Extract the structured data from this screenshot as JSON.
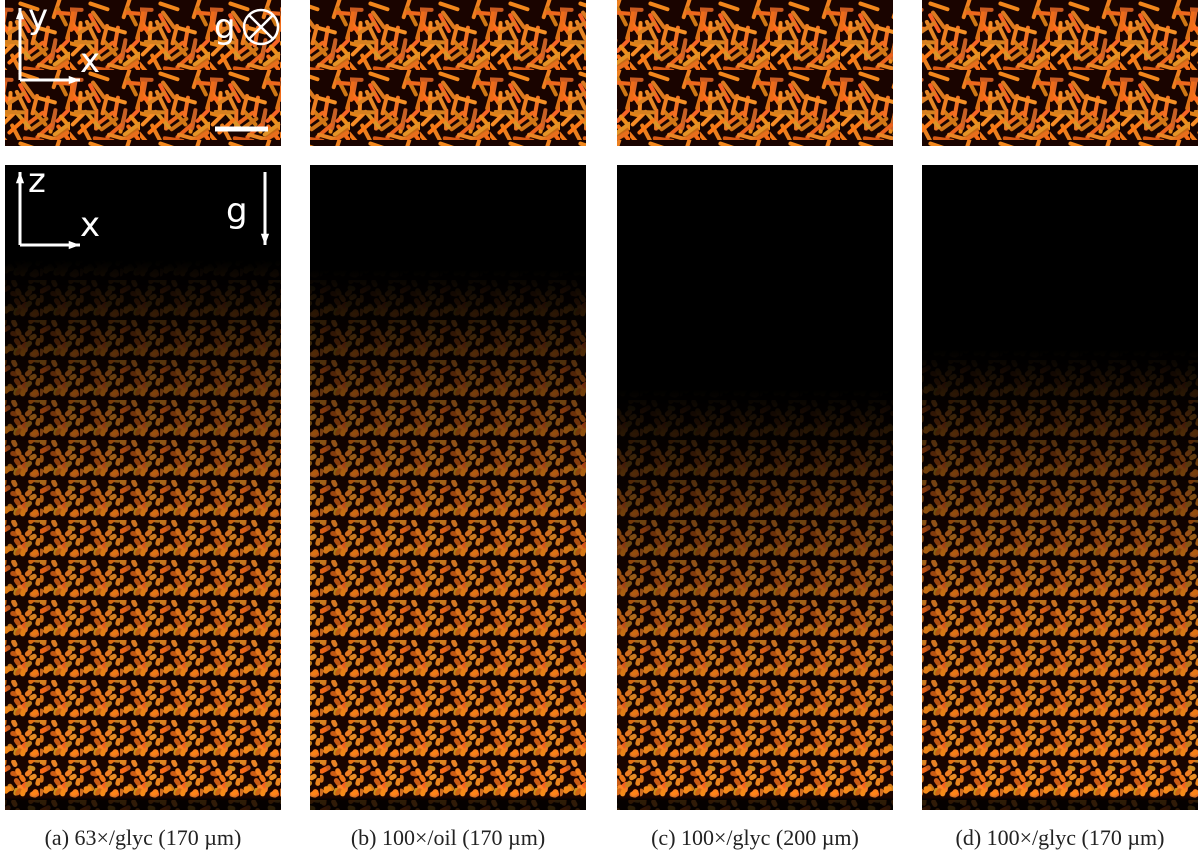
{
  "figure": {
    "panels": [
      {
        "caption": "(a) 63×/glyc (170 µm)",
        "top_axes": {
          "vertical": "y",
          "horizontal": "x",
          "gravity": "g"
        },
        "side_axes": {
          "vertical": "z",
          "horizontal": "x",
          "gravity": "g"
        }
      },
      {
        "caption": "(b) 100×/oil (170 µm)"
      },
      {
        "caption": "(c) 100×/glyc (200 µm)"
      },
      {
        "caption": "(d) 100×/glyc (170 µm)"
      }
    ]
  }
}
